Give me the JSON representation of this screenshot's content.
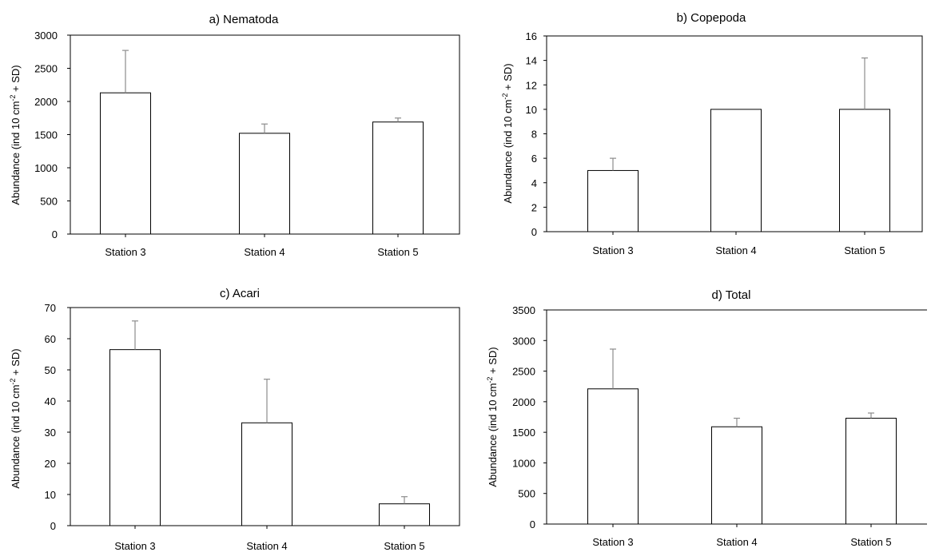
{
  "chart_data": [
    {
      "type": "bar",
      "title": "a) Nematoda",
      "ylabel": "Abundance (ind 10 cm-2 + SD)",
      "categories": [
        "Station 3",
        "Station 4",
        "Station 5"
      ],
      "values": [
        2130,
        1520,
        1690
      ],
      "errors": [
        640,
        140,
        60
      ],
      "ylim": [
        0,
        3000
      ],
      "yticks": [
        0,
        500,
        1000,
        1500,
        2000,
        2500,
        3000
      ],
      "grid": false
    },
    {
      "type": "bar",
      "title": "b) Copepoda",
      "ylabel": "Abundance (ind 10 cm-2 + SD)",
      "categories": [
        "Station 3",
        "Station 4",
        "Station 5"
      ],
      "values": [
        5,
        10,
        10
      ],
      "errors": [
        1,
        0,
        4.2
      ],
      "ylim": [
        0,
        16
      ],
      "yticks": [
        0,
        2,
        4,
        6,
        8,
        10,
        12,
        14,
        16
      ],
      "grid": false
    },
    {
      "type": "bar",
      "title": "c) Acari",
      "ylabel": "Abundance (ind 10 cm-2 + SD)",
      "categories": [
        "Station 3",
        "Station 4",
        "Station 5"
      ],
      "values": [
        56.5,
        33,
        7
      ],
      "errors": [
        9.2,
        14,
        2.3
      ],
      "ylim": [
        0,
        70
      ],
      "yticks": [
        0,
        10,
        20,
        30,
        40,
        50,
        60,
        70
      ],
      "grid": false
    },
    {
      "type": "bar",
      "title": "d) Total",
      "ylabel": "Abundance (ind 10 cm-2 + SD)",
      "categories": [
        "Station 3",
        "Station 4",
        "Station 5"
      ],
      "values": [
        2210,
        1590,
        1730
      ],
      "errors": [
        650,
        140,
        85
      ],
      "ylim": [
        0,
        3500
      ],
      "yticks": [
        0,
        500,
        1000,
        1500,
        2000,
        2500,
        3000,
        3500
      ],
      "grid": false
    }
  ],
  "ylabel_parts": {
    "before": "Abundance (ind 10 cm",
    "sup": "-2",
    "after": " + SD)"
  }
}
